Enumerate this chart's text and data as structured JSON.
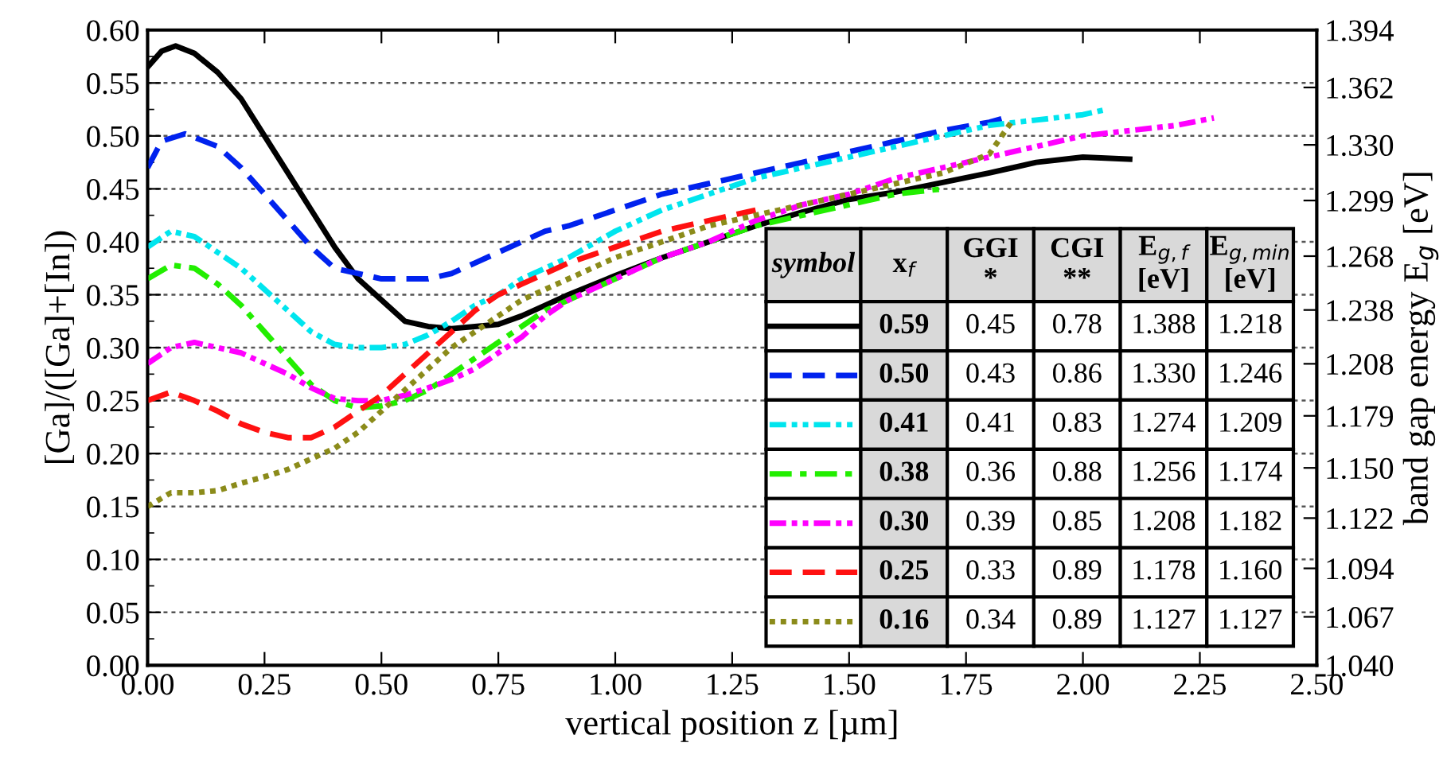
{
  "chart_data": {
    "type": "line",
    "xlabel": "vertical position z [µm]",
    "ylabel": "[Ga]/([Ga]+[In])",
    "y2label": "band gap energy E$_{g}$ [eV]",
    "xlim": [
      0,
      2.5
    ],
    "xticks": [
      {
        "value": 0,
        "label": "0.00"
      },
      {
        "value": 0.25,
        "label": "0.25"
      },
      {
        "value": 0.5,
        "label": "0.50"
      },
      {
        "value": 0.75,
        "label": "0.75"
      },
      {
        "value": 1.0,
        "label": "1.00"
      },
      {
        "value": 1.25,
        "label": "1.25"
      },
      {
        "value": 1.5,
        "label": "1.50"
      },
      {
        "value": 1.75,
        "label": "1.75"
      },
      {
        "value": 2.0,
        "label": "2.00"
      },
      {
        "value": 2.25,
        "label": "2.25"
      },
      {
        "value": 2.5,
        "label": "2.50"
      }
    ],
    "ylim": [
      0,
      0.6
    ],
    "yticks": [
      {
        "value": 0,
        "label": "0.00"
      },
      {
        "value": 0.05,
        "label": "0.05"
      },
      {
        "value": 0.1,
        "label": "0.10"
      },
      {
        "value": 0.15,
        "label": "0.15"
      },
      {
        "value": 0.2,
        "label": "0.20"
      },
      {
        "value": 0.25,
        "label": "0.25"
      },
      {
        "value": 0.3,
        "label": "0.30"
      },
      {
        "value": 0.35,
        "label": "0.35"
      },
      {
        "value": 0.4,
        "label": "0.40"
      },
      {
        "value": 0.45,
        "label": "0.45"
      },
      {
        "value": 0.5,
        "label": "0.50"
      },
      {
        "value": 0.55,
        "label": "0.55"
      },
      {
        "value": 0.6,
        "label": "0.60"
      }
    ],
    "y2lim": [
      1.04,
      1.394
    ],
    "y2ticks": [
      {
        "value": 1.04,
        "label": "1.040"
      },
      1.067,
      1.094,
      1.122,
      {
        "value": 1.15,
        "label": "1.150"
      },
      1.179,
      1.208,
      1.238,
      1.268,
      1.299,
      {
        "value": 1.33,
        "label": "1.330"
      },
      1.362,
      1.394
    ],
    "grid": "y",
    "legend": "bottom right",
    "legend_title": "symbol",
    "series": [
      {
        "name": "0.59",
        "color": "#000000",
        "line_style": "solid",
        "x": [
          0,
          0.03,
          0.06,
          0.1,
          0.15,
          0.2,
          0.25,
          0.3,
          0.35,
          0.4,
          0.45,
          0.5,
          0.55,
          0.6,
          0.65,
          0.7,
          0.75,
          0.8,
          0.85,
          0.9,
          1.0,
          1.1,
          1.2,
          1.3,
          1.4,
          1.5,
          1.6,
          1.7,
          1.8,
          1.9,
          2.0,
          2.1
        ],
        "values": [
          0.565,
          0.58,
          0.585,
          0.578,
          0.56,
          0.535,
          0.5,
          0.465,
          0.43,
          0.395,
          0.365,
          0.345,
          0.325,
          0.32,
          0.318,
          0.32,
          0.322,
          0.33,
          0.34,
          0.35,
          0.368,
          0.385,
          0.4,
          0.415,
          0.428,
          0.44,
          0.447,
          0.456,
          0.465,
          0.475,
          0.48,
          0.478
        ]
      },
      {
        "name": "0.50",
        "color": "#0022ee",
        "line_style": "dashed",
        "x": [
          0,
          0.03,
          0.08,
          0.15,
          0.2,
          0.25,
          0.3,
          0.35,
          0.4,
          0.45,
          0.5,
          0.55,
          0.6,
          0.65,
          0.7,
          0.75,
          0.8,
          0.85,
          0.9,
          1.0,
          1.1,
          1.2,
          1.3,
          1.4,
          1.5,
          1.6,
          1.7,
          1.8,
          1.84
        ],
        "values": [
          0.47,
          0.495,
          0.502,
          0.49,
          0.47,
          0.445,
          0.42,
          0.395,
          0.375,
          0.37,
          0.365,
          0.365,
          0.365,
          0.37,
          0.38,
          0.39,
          0.4,
          0.41,
          0.415,
          0.43,
          0.445,
          0.455,
          0.465,
          0.475,
          0.485,
          0.495,
          0.505,
          0.513,
          0.518
        ]
      },
      {
        "name": "0.41",
        "color": "#00e5ee",
        "line_style": "dashdotdot",
        "x": [
          0,
          0.05,
          0.1,
          0.15,
          0.2,
          0.25,
          0.3,
          0.35,
          0.4,
          0.45,
          0.5,
          0.55,
          0.6,
          0.65,
          0.7,
          0.75,
          0.8,
          0.85,
          0.9,
          1.0,
          1.1,
          1.2,
          1.3,
          1.4,
          1.5,
          1.6,
          1.7,
          1.8,
          1.9,
          2.0,
          2.05
        ],
        "values": [
          0.395,
          0.41,
          0.405,
          0.39,
          0.375,
          0.355,
          0.335,
          0.315,
          0.303,
          0.3,
          0.3,
          0.303,
          0.312,
          0.325,
          0.34,
          0.35,
          0.365,
          0.375,
          0.385,
          0.41,
          0.43,
          0.445,
          0.46,
          0.47,
          0.48,
          0.49,
          0.5,
          0.51,
          0.515,
          0.52,
          0.525
        ]
      },
      {
        "name": "0.38",
        "color": "#22ee00",
        "line_style": "dashdot",
        "x": [
          0,
          0.05,
          0.1,
          0.15,
          0.2,
          0.25,
          0.3,
          0.35,
          0.4,
          0.45,
          0.5,
          0.55,
          0.6,
          0.65,
          0.7,
          0.75,
          0.8,
          0.85,
          0.9,
          1.0,
          1.1,
          1.2,
          1.3,
          1.4,
          1.5,
          1.6,
          1.7
        ],
        "values": [
          0.365,
          0.378,
          0.375,
          0.36,
          0.34,
          0.315,
          0.29,
          0.265,
          0.25,
          0.243,
          0.245,
          0.25,
          0.26,
          0.275,
          0.29,
          0.305,
          0.32,
          0.335,
          0.345,
          0.365,
          0.385,
          0.4,
          0.415,
          0.425,
          0.435,
          0.445,
          0.45
        ]
      },
      {
        "name": "0.30",
        "color": "#ff00ff",
        "line_style": "dashdotdot",
        "x": [
          0,
          0.05,
          0.1,
          0.15,
          0.2,
          0.25,
          0.3,
          0.35,
          0.4,
          0.45,
          0.5,
          0.55,
          0.6,
          0.65,
          0.7,
          0.75,
          0.8,
          0.85,
          0.9,
          1.0,
          1.1,
          1.2,
          1.3,
          1.4,
          1.5,
          1.6,
          1.7,
          1.8,
          1.9,
          2.0,
          2.1,
          2.2,
          2.28
        ],
        "values": [
          0.285,
          0.3,
          0.305,
          0.3,
          0.295,
          0.285,
          0.275,
          0.262,
          0.252,
          0.25,
          0.25,
          0.255,
          0.262,
          0.27,
          0.28,
          0.295,
          0.31,
          0.33,
          0.345,
          0.365,
          0.385,
          0.4,
          0.42,
          0.435,
          0.445,
          0.46,
          0.47,
          0.48,
          0.49,
          0.5,
          0.505,
          0.51,
          0.517
        ]
      },
      {
        "name": "0.25",
        "color": "#ff1111",
        "line_style": "dashed",
        "x": [
          0,
          0.05,
          0.1,
          0.15,
          0.2,
          0.25,
          0.3,
          0.35,
          0.4,
          0.45,
          0.5,
          0.55,
          0.6,
          0.65,
          0.7,
          0.75,
          0.8,
          0.85,
          0.9,
          1.0,
          1.1,
          1.2,
          1.3
        ],
        "values": [
          0.25,
          0.258,
          0.25,
          0.24,
          0.228,
          0.22,
          0.215,
          0.215,
          0.225,
          0.24,
          0.255,
          0.275,
          0.295,
          0.315,
          0.335,
          0.35,
          0.36,
          0.37,
          0.38,
          0.395,
          0.41,
          0.42,
          0.43
        ]
      },
      {
        "name": "0.16",
        "color": "#8b8b1a",
        "line_style": "dotted",
        "x": [
          0,
          0.05,
          0.1,
          0.15,
          0.2,
          0.25,
          0.3,
          0.35,
          0.4,
          0.45,
          0.5,
          0.55,
          0.6,
          0.65,
          0.7,
          0.75,
          0.8,
          0.85,
          0.9,
          1.0,
          1.1,
          1.2,
          1.3,
          1.4,
          1.5,
          1.6,
          1.7,
          1.8,
          1.85
        ],
        "values": [
          0.15,
          0.163,
          0.163,
          0.165,
          0.172,
          0.178,
          0.185,
          0.195,
          0.205,
          0.22,
          0.24,
          0.26,
          0.28,
          0.3,
          0.315,
          0.33,
          0.345,
          0.355,
          0.365,
          0.385,
          0.4,
          0.415,
          0.425,
          0.435,
          0.445,
          0.455,
          0.465,
          0.483,
          0.515
        ]
      }
    ],
    "annotations": [
      "x$_{f}$",
      "GGI\n*",
      "CGI\n**",
      "E$_{g,f}$\n[eV]",
      "E$_{g,min}$\n[eV]",
      "0.45",
      "0.78",
      "1.388",
      "1.218",
      "0.43",
      "0.86",
      "1.330",
      "1.246",
      "0.41",
      "0.83",
      "1.274",
      "1.209",
      "0.36",
      "0.88",
      "1.256",
      "1.174",
      "0.39",
      "0.85",
      "1.208",
      "1.182",
      "0.33",
      "0.89",
      "1.178",
      "1.160",
      "0.34",
      "0.89",
      "1.127",
      "1.127"
    ]
  }
}
